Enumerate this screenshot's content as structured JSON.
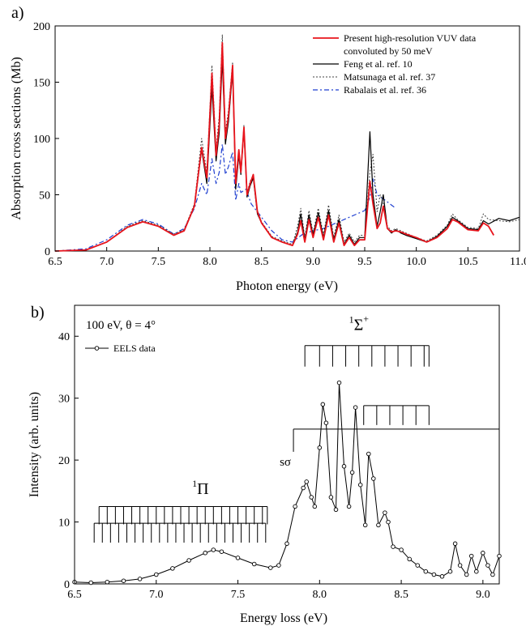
{
  "chart_data": [
    {
      "type": "line",
      "panel_label": "a)",
      "xlabel": "Photon energy (eV)",
      "ylabel": "Absorption cross sections (Mb)",
      "xlim": [
        6.5,
        11.0
      ],
      "ylim": [
        0,
        200
      ],
      "xticks": [
        6.5,
        7.0,
        7.5,
        8.0,
        8.5,
        9.0,
        9.5,
        10.0,
        10.5,
        11.0
      ],
      "xtick_labels": [
        "6.5",
        "7.0",
        "7.5",
        "8.0",
        "8.5",
        "9.0",
        "9.5",
        "10.0",
        "10.5",
        "11.0"
      ],
      "yticks": [
        0,
        50,
        100,
        150,
        200
      ],
      "ytick_labels": [
        "0",
        "50",
        "100",
        "150",
        "200"
      ],
      "legend_position": "top-right",
      "series": [
        {
          "name": "Present high-resolution VUV data convoluted by 50 meV",
          "legend_lines": [
            "Present high-resolution VUV data",
            "convoluted by 50 meV"
          ],
          "color": "#e8141c",
          "style": "solid",
          "x": [
            6.5,
            6.8,
            7.0,
            7.2,
            7.35,
            7.5,
            7.65,
            7.75,
            7.85,
            7.92,
            7.97,
            8.02,
            8.06,
            8.09,
            8.12,
            8.15,
            8.18,
            8.22,
            8.25,
            8.28,
            8.3,
            8.33,
            8.36,
            8.39,
            8.42,
            8.46,
            8.5,
            8.6,
            8.7,
            8.8,
            8.85,
            8.88,
            8.92,
            8.96,
            9.0,
            9.05,
            9.1,
            9.15,
            9.2,
            9.25,
            9.3,
            9.35,
            9.4,
            9.45,
            9.5,
            9.55,
            9.58,
            9.62,
            9.65,
            9.68,
            9.72,
            9.76,
            9.8,
            9.85,
            9.9,
            10.0,
            10.1,
            10.2,
            10.3,
            10.35,
            10.4,
            10.5,
            10.6,
            10.65,
            10.7,
            10.75
          ],
          "y": [
            0,
            1,
            8,
            21,
            26,
            22,
            14,
            18,
            40,
            92,
            65,
            158,
            85,
            112,
            185,
            100,
            120,
            165,
            60,
            90,
            70,
            110,
            50,
            60,
            68,
            35,
            25,
            12,
            8,
            5,
            15,
            27,
            8,
            28,
            12,
            30,
            10,
            32,
            8,
            25,
            5,
            12,
            5,
            10,
            10,
            62,
            42,
            20,
            25,
            40,
            20,
            17,
            18,
            17,
            15,
            12,
            8,
            12,
            20,
            28,
            26,
            19,
            18,
            25,
            22,
            14
          ]
        },
        {
          "name": "Feng et al. ref. 10",
          "color": "#000000",
          "style": "solid",
          "x": [
            6.5,
            6.8,
            7.0,
            7.2,
            7.35,
            7.5,
            7.65,
            7.75,
            7.85,
            7.92,
            7.97,
            8.02,
            8.06,
            8.09,
            8.12,
            8.15,
            8.18,
            8.22,
            8.25,
            8.28,
            8.3,
            8.33,
            8.36,
            8.39,
            8.42,
            8.46,
            8.5,
            8.6,
            8.7,
            8.8,
            8.85,
            8.88,
            8.92,
            8.96,
            9.0,
            9.05,
            9.1,
            9.15,
            9.2,
            9.25,
            9.3,
            9.35,
            9.4,
            9.45,
            9.5,
            9.55,
            9.58,
            9.62,
            9.65,
            9.68,
            9.72,
            9.76,
            9.8,
            9.85,
            9.9,
            10.0,
            10.1,
            10.2,
            10.3,
            10.35,
            10.4,
            10.5,
            10.6,
            10.65,
            10.7,
            10.8,
            10.9,
            11.0
          ],
          "y": [
            0,
            1,
            8,
            21,
            26,
            22,
            14,
            18,
            40,
            90,
            60,
            145,
            80,
            105,
            170,
            95,
            115,
            160,
            55,
            85,
            68,
            108,
            48,
            58,
            65,
            33,
            25,
            12,
            8,
            5,
            17,
            33,
            10,
            32,
            14,
            34,
            12,
            36,
            10,
            28,
            6,
            14,
            6,
            12,
            12,
            106,
            50,
            22,
            35,
            50,
            20,
            16,
            19,
            16,
            14,
            11,
            8,
            13,
            22,
            30,
            27,
            20,
            19,
            27,
            24,
            29,
            27,
            30
          ]
        },
        {
          "name": "Matsunaga et al. ref. 37",
          "color": "#404040",
          "style": "dotted",
          "x": [
            6.5,
            6.8,
            7.0,
            7.2,
            7.35,
            7.5,
            7.65,
            7.75,
            7.85,
            7.92,
            7.97,
            8.02,
            8.06,
            8.09,
            8.12,
            8.15,
            8.18,
            8.22,
            8.25,
            8.28,
            8.3,
            8.33,
            8.36,
            8.39,
            8.42,
            8.46,
            8.5,
            8.6,
            8.7,
            8.8,
            8.85,
            8.88,
            8.92,
            8.96,
            9.0,
            9.05,
            9.1,
            9.15,
            9.2,
            9.25,
            9.3,
            9.35,
            9.4,
            9.45,
            9.5,
            9.55,
            9.58,
            9.62,
            9.65,
            9.68,
            9.72,
            9.76,
            9.8,
            9.85,
            9.9,
            10.0,
            10.1,
            10.2,
            10.3,
            10.35,
            10.4,
            10.5,
            10.6,
            10.65,
            10.7,
            10.8,
            10.9,
            11.0
          ],
          "y": [
            0,
            1,
            8,
            22,
            27,
            23,
            15,
            19,
            42,
            100,
            70,
            165,
            90,
            120,
            192,
            105,
            125,
            168,
            60,
            88,
            72,
            112,
            52,
            62,
            67,
            36,
            26,
            13,
            9,
            6,
            22,
            38,
            12,
            36,
            16,
            38,
            14,
            41,
            12,
            32,
            8,
            16,
            8,
            14,
            14,
            70,
            86,
            35,
            50,
            42,
            22,
            18,
            20,
            18,
            16,
            12,
            9,
            14,
            23,
            33,
            28,
            21,
            20,
            33,
            28,
            27,
            26,
            28
          ]
        },
        {
          "name": "Rabalais et al. ref. 36",
          "color": "#1f3fd0",
          "style": "dashdot",
          "x": [
            6.5,
            6.8,
            7.0,
            7.2,
            7.35,
            7.5,
            7.65,
            7.75,
            7.85,
            7.92,
            7.97,
            8.02,
            8.06,
            8.09,
            8.12,
            8.15,
            8.18,
            8.22,
            8.25,
            8.28,
            8.3,
            8.35,
            8.4,
            8.5,
            8.6,
            8.7,
            8.8,
            8.9,
            9.0,
            9.1,
            9.2,
            9.3,
            9.4,
            9.5,
            9.55,
            9.58,
            9.62,
            9.7,
            9.8
          ],
          "y": [
            0,
            2,
            10,
            23,
            28,
            24,
            15,
            20,
            38,
            60,
            50,
            82,
            60,
            70,
            95,
            68,
            75,
            88,
            45,
            60,
            52,
            55,
            42,
            30,
            18,
            10,
            8,
            15,
            18,
            20,
            24,
            28,
            32,
            36,
            48,
            64,
            50,
            45,
            38
          ]
        }
      ]
    },
    {
      "type": "scatter",
      "panel_label": "b)",
      "xlabel": "Energy loss (eV)",
      "ylabel": "Intensity (arb. units)",
      "xlim": [
        6.5,
        9.1
      ],
      "ylim": [
        0,
        45
      ],
      "xticks": [
        6.5,
        7.0,
        7.5,
        8.0,
        8.5,
        9.0
      ],
      "xtick_labels": [
        "6.5",
        "7.0",
        "7.5",
        "8.0",
        "8.5",
        "9.0"
      ],
      "yticks": [
        0,
        10,
        20,
        30,
        40
      ],
      "ytick_labels": [
        "0",
        "10",
        "20",
        "30",
        "40"
      ],
      "legend_position": "top-left",
      "annotation": "100 eV, θ = 4°",
      "series": [
        {
          "name": "EELS data",
          "color": "#000000",
          "marker": "open-circle",
          "x": [
            6.5,
            6.6,
            6.7,
            6.8,
            6.9,
            7.0,
            7.1,
            7.2,
            7.3,
            7.35,
            7.4,
            7.5,
            7.6,
            7.7,
            7.75,
            7.8,
            7.85,
            7.9,
            7.92,
            7.95,
            7.97,
            8.0,
            8.02,
            8.04,
            8.07,
            8.1,
            8.12,
            8.15,
            8.18,
            8.2,
            8.22,
            8.25,
            8.28,
            8.3,
            8.33,
            8.36,
            8.4,
            8.42,
            8.45,
            8.5,
            8.55,
            8.6,
            8.65,
            8.7,
            8.75,
            8.8,
            8.83,
            8.86,
            8.9,
            8.93,
            8.96,
            9.0,
            9.03,
            9.06,
            9.1
          ],
          "y": [
            0.3,
            0.2,
            0.3,
            0.5,
            0.8,
            1.5,
            2.5,
            3.8,
            5.0,
            5.5,
            5.2,
            4.2,
            3.2,
            2.6,
            3.0,
            6.5,
            12.5,
            15.5,
            16.5,
            14.0,
            12.5,
            22.0,
            29.0,
            26.0,
            14.0,
            12.0,
            32.5,
            19.0,
            12.5,
            18.0,
            28.5,
            16.0,
            9.5,
            21.0,
            17.0,
            9.5,
            11.5,
            10.0,
            6.0,
            5.5,
            4.0,
            3.0,
            2.0,
            1.5,
            1.2,
            2.0,
            6.5,
            3.0,
            1.5,
            4.5,
            2.0,
            5.0,
            3.0,
            1.5,
            4.5
          ]
        }
      ],
      "annotations": {
        "pi_term": "1Π",
        "sigma_term": "1Σ+",
        "s_sigma": "sσ",
        "pi_progression_upper": [
          6.65,
          6.7,
          6.75,
          6.8,
          6.85,
          6.9,
          6.95,
          7.0,
          7.05,
          7.1,
          7.15,
          7.2,
          7.25,
          7.3,
          7.35,
          7.4,
          7.45,
          7.5,
          7.55,
          7.6,
          7.65,
          7.68
        ],
        "pi_progression_lower": [
          6.62,
          6.67,
          6.72,
          6.77,
          6.82,
          6.87,
          6.92,
          6.97,
          7.02,
          7.07,
          7.12,
          7.17,
          7.22,
          7.27,
          7.32,
          7.37,
          7.42,
          7.47,
          7.52,
          7.57,
          7.62,
          7.67
        ],
        "sigma_progression_upper": [
          7.91,
          8.0,
          8.08,
          8.16,
          8.24,
          8.32,
          8.4,
          8.48,
          8.56,
          8.64,
          8.67
        ],
        "sigma_progression_lower": [
          8.27,
          8.35,
          8.43,
          8.51,
          8.59,
          8.67
        ],
        "s_sigma_onset": 7.84
      }
    }
  ]
}
